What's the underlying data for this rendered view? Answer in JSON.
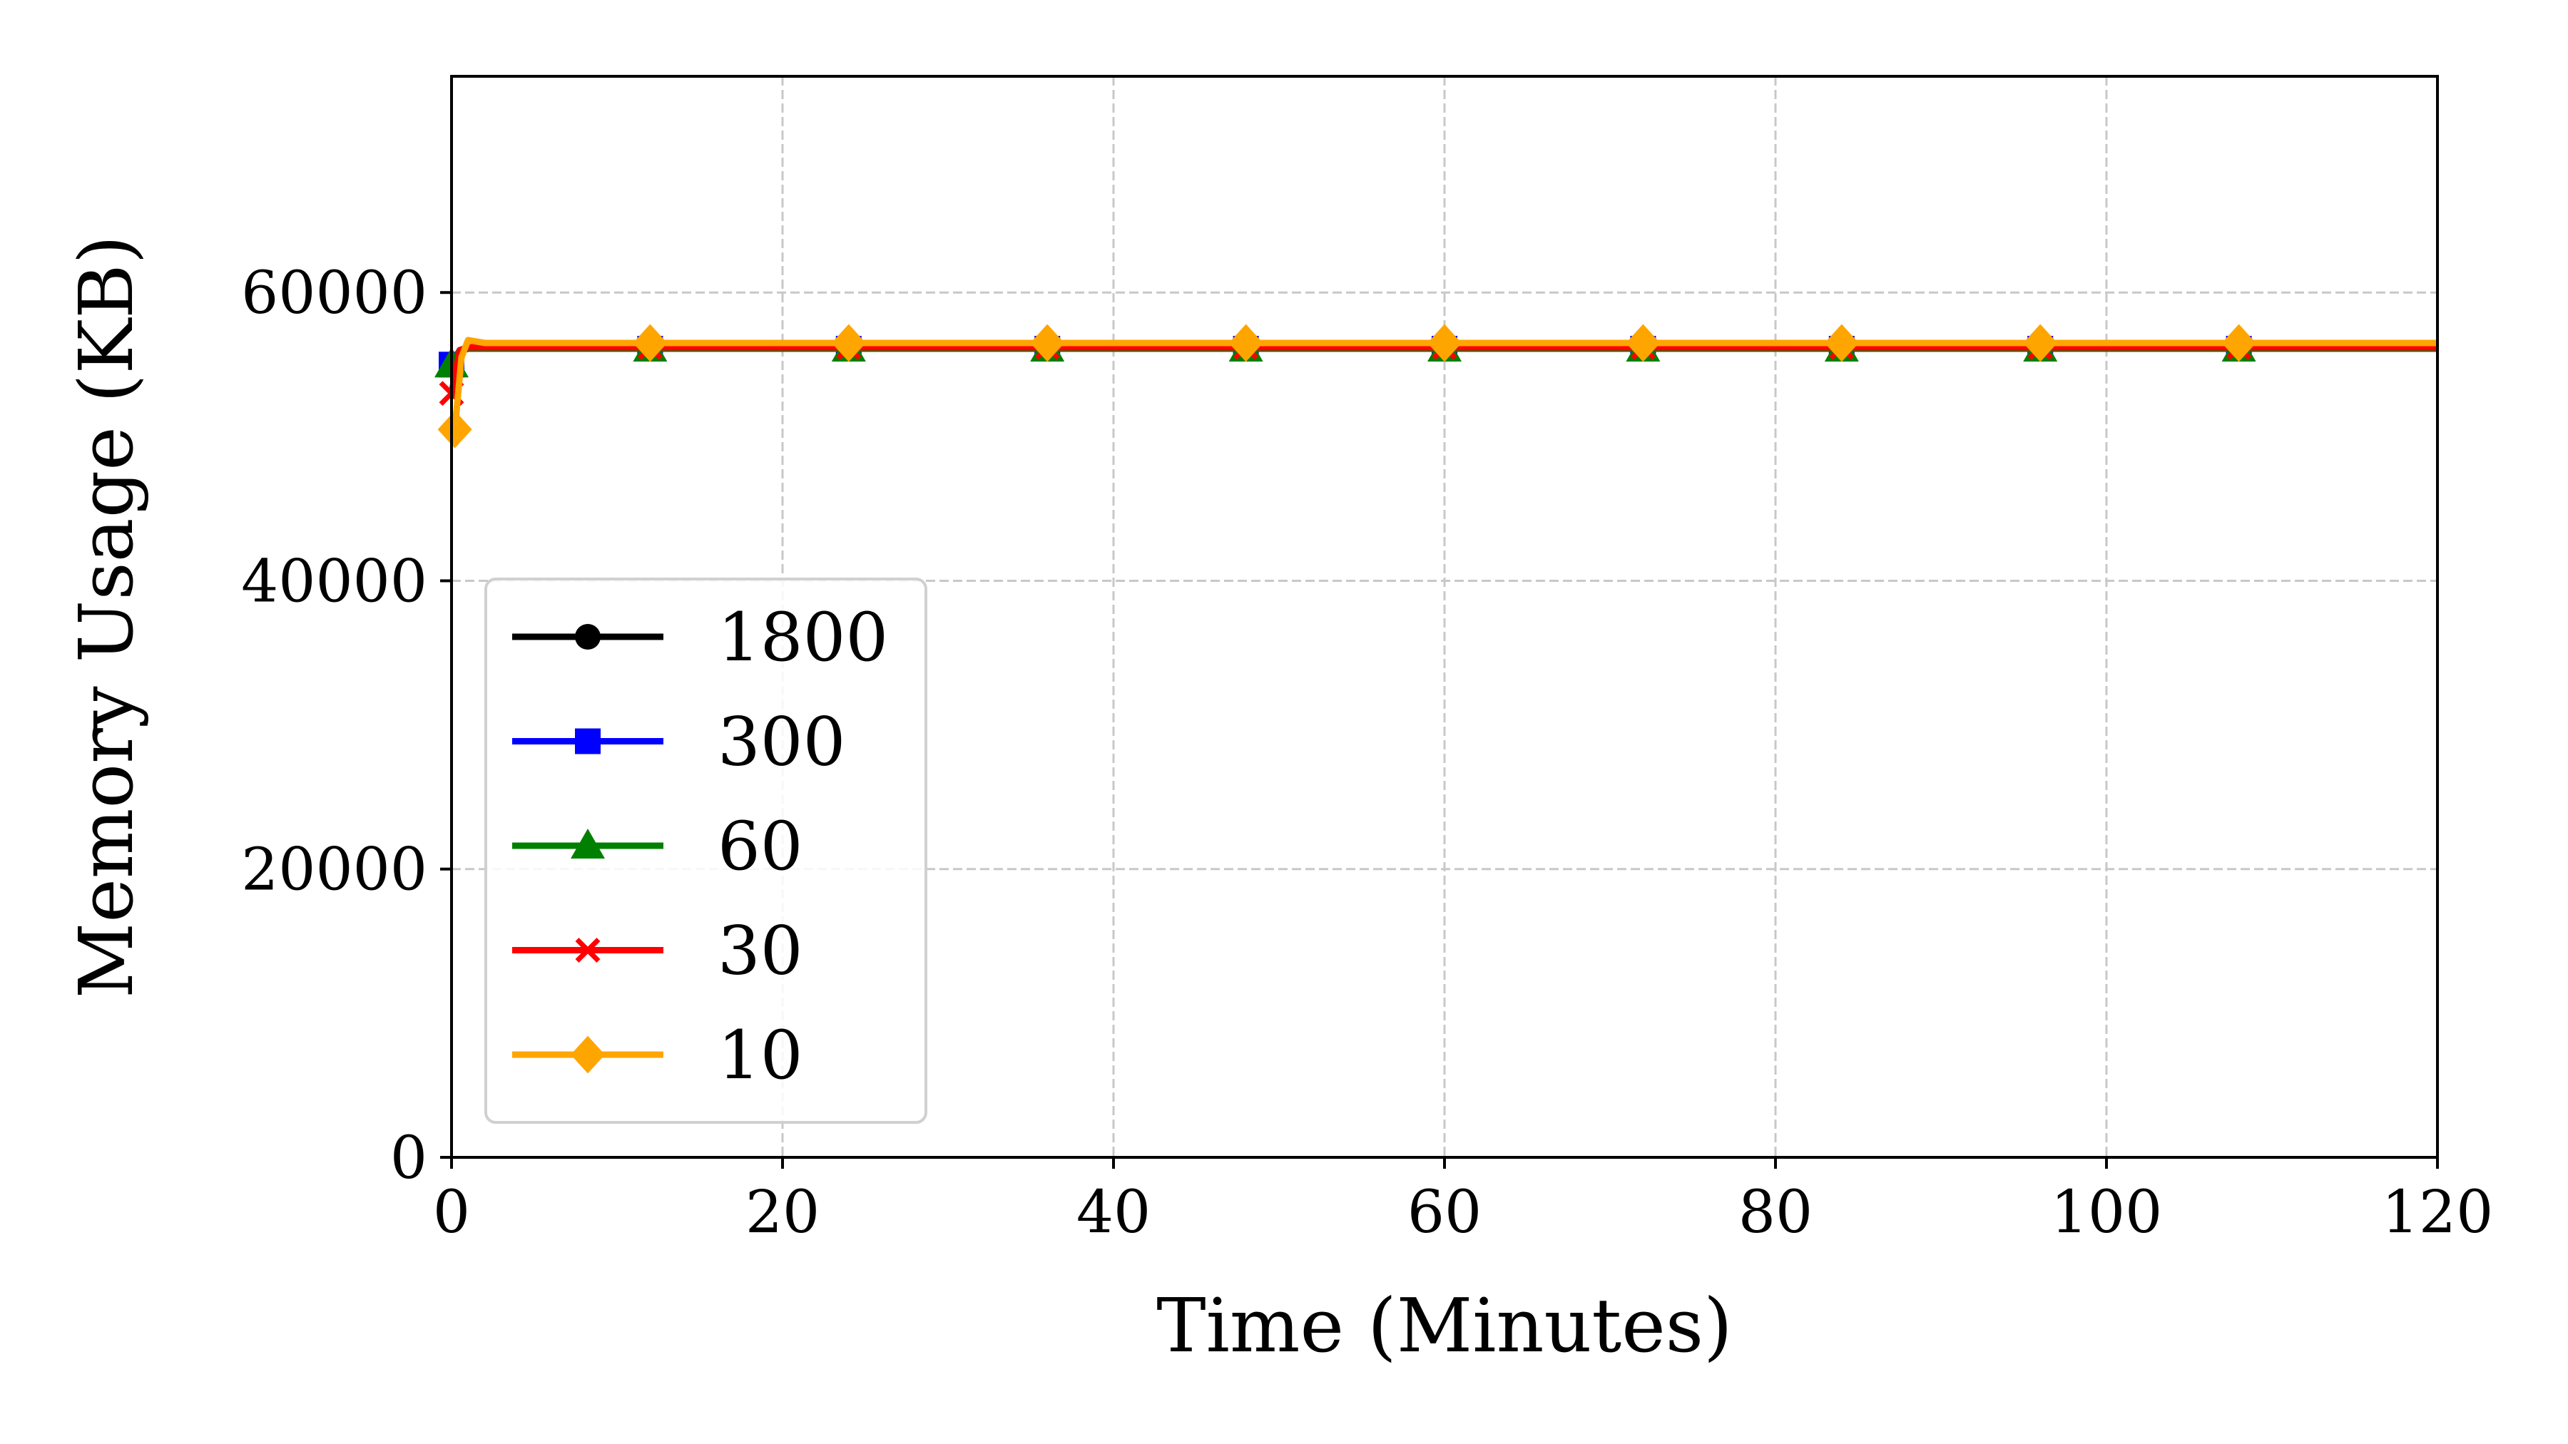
{
  "chart_data": {
    "type": "line",
    "title": "",
    "xlabel": "Time (Minutes)",
    "ylabel": "Memory Usage (KB)",
    "xlim": [
      0,
      120
    ],
    "ylim": [
      0,
      75000
    ],
    "xticks": [
      0,
      20,
      40,
      60,
      80,
      100,
      120
    ],
    "yticks": [
      0,
      20000,
      40000,
      60000
    ],
    "grid": true,
    "legend_position": "lower-left",
    "marker_x": [
      0,
      12,
      24,
      36,
      48,
      60,
      72,
      84,
      96,
      108,
      120
    ],
    "series": [
      {
        "name": "1800",
        "color": "#000000",
        "marker": "circle",
        "x": [
          0,
          0.5,
          1,
          2,
          12,
          24,
          36,
          48,
          60,
          72,
          84,
          96,
          108,
          120
        ],
        "y": [
          55000,
          56000,
          56100,
          56100,
          56100,
          56100,
          56100,
          56100,
          56100,
          56100,
          56100,
          56100,
          56100,
          56100
        ]
      },
      {
        "name": "300",
        "color": "#0000ff",
        "marker": "square",
        "x": [
          0,
          0.5,
          1,
          2,
          12,
          24,
          36,
          48,
          60,
          72,
          84,
          96,
          108,
          120
        ],
        "y": [
          55000,
          56000,
          56100,
          56100,
          56100,
          56100,
          56100,
          56100,
          56100,
          56100,
          56100,
          56100,
          56100,
          56100
        ]
      },
      {
        "name": "60",
        "color": "#008000",
        "marker": "triangle",
        "x": [
          0,
          0.5,
          1,
          2,
          12,
          24,
          36,
          48,
          60,
          72,
          84,
          96,
          108,
          120
        ],
        "y": [
          55000,
          56000,
          56100,
          56100,
          56100,
          56100,
          56100,
          56100,
          56100,
          56100,
          56100,
          56100,
          56100,
          56100
        ]
      },
      {
        "name": "30",
        "color": "#ff0000",
        "marker": "x",
        "x": [
          0,
          0.5,
          1,
          2,
          12,
          24,
          36,
          48,
          60,
          72,
          84,
          96,
          108,
          120
        ],
        "y": [
          53000,
          56000,
          56200,
          56200,
          56200,
          56200,
          56200,
          56200,
          56200,
          56200,
          56200,
          56200,
          56200,
          56200
        ]
      },
      {
        "name": "10",
        "color": "#ffa500",
        "marker": "diamond",
        "x": [
          0.2,
          0.6,
          1,
          1.5,
          2,
          3,
          12,
          24,
          36,
          48,
          60,
          72,
          84,
          96,
          108,
          120
        ],
        "y": [
          50500,
          55500,
          56700,
          56600,
          56500,
          56500,
          56500,
          56500,
          56500,
          56500,
          56500,
          56500,
          56500,
          56500,
          56500,
          56500
        ]
      }
    ]
  }
}
